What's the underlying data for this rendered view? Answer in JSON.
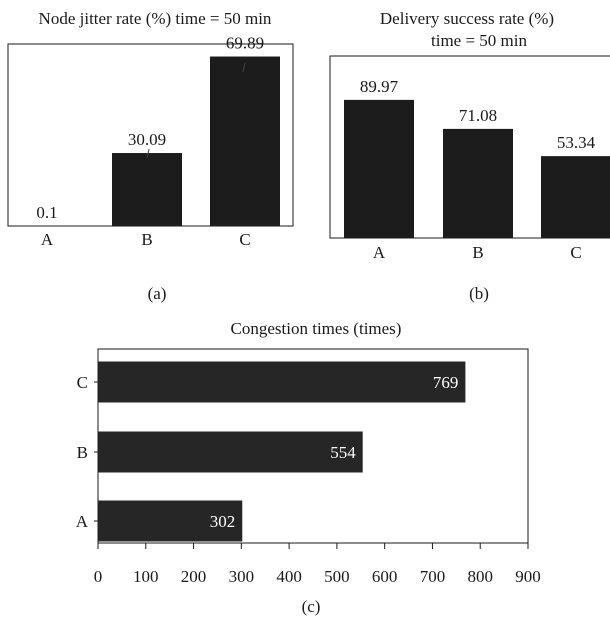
{
  "chart_data": [
    {
      "type": "bar",
      "orientation": "vertical",
      "panel_label": "(a)",
      "title": "Node jitter rate (%) time = 50 min",
      "categories": [
        "A",
        "B",
        "C"
      ],
      "values": [
        0.1,
        30.09,
        69.89
      ],
      "data_labels": [
        "0.1",
        "30.09",
        "69.89"
      ],
      "ylim": [
        0,
        80
      ],
      "bar_color": "#1c1c1c"
    },
    {
      "type": "bar",
      "orientation": "vertical",
      "panel_label": "(b)",
      "title_lines": [
        "Delivery success rate (%)",
        "time = 50 min"
      ],
      "categories": [
        "A",
        "B",
        "C"
      ],
      "values": [
        89.97,
        71.08,
        53.34
      ],
      "data_labels": [
        "89.97",
        "71.08",
        "53.34"
      ],
      "ylim": [
        0,
        100
      ],
      "bar_color": "#1c1c1c"
    },
    {
      "type": "bar",
      "orientation": "horizontal",
      "panel_label": "(c)",
      "title": "Congestion times (times)",
      "categories": [
        "A",
        "B",
        "C"
      ],
      "values": [
        302,
        554,
        769
      ],
      "data_labels": [
        "302",
        "554",
        "769"
      ],
      "xlim": [
        0,
        900
      ],
      "xticks": [
        "0",
        "100",
        "200",
        "300",
        "400",
        "500",
        "600",
        "700",
        "800",
        "900"
      ],
      "bar_color": "#262626",
      "label_color": "#ffffff"
    }
  ]
}
